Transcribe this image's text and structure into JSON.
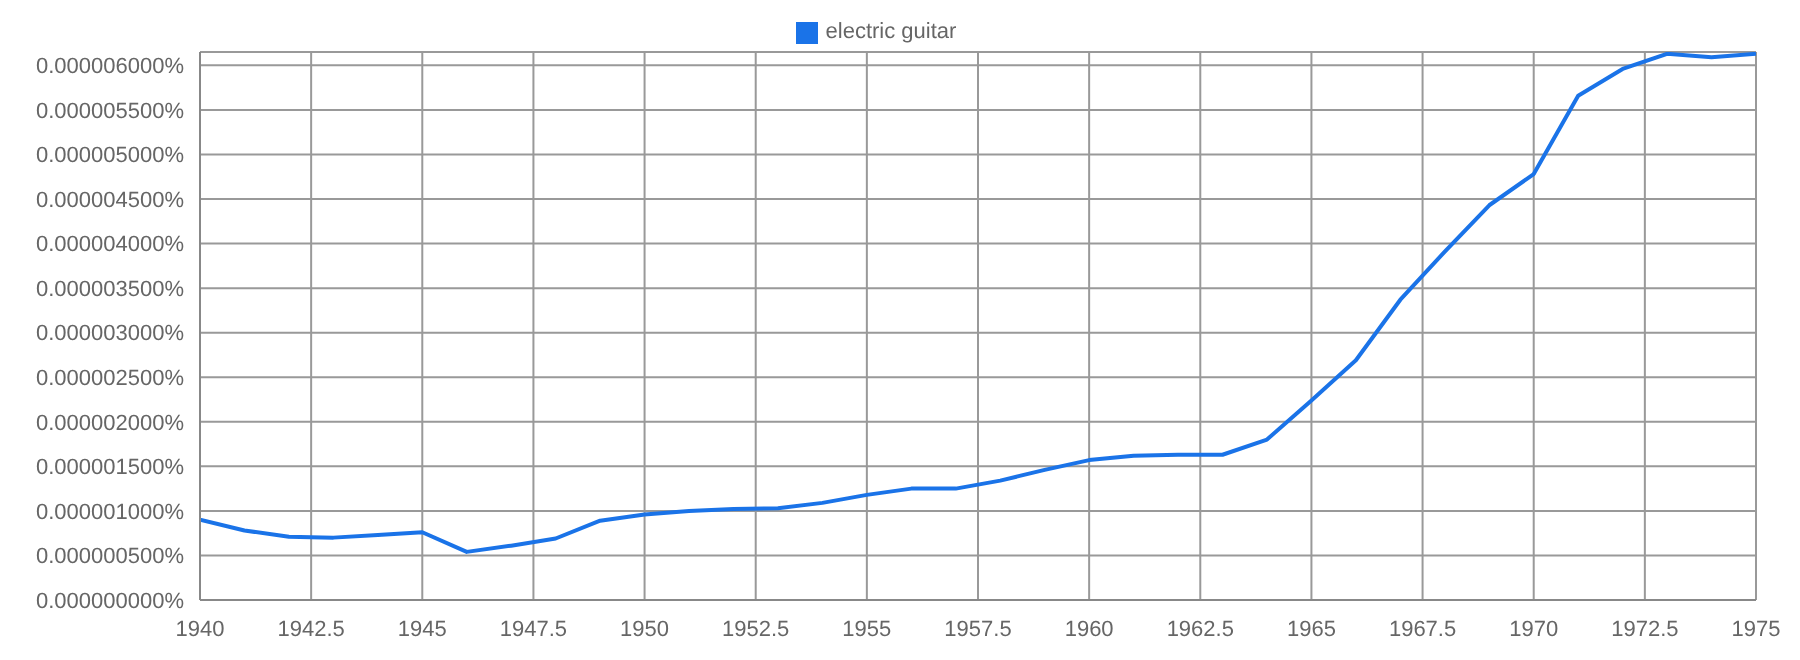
{
  "chart_data": {
    "type": "line",
    "x": [
      1940,
      1941,
      1942,
      1943,
      1944,
      1945,
      1946,
      1947,
      1948,
      1949,
      1950,
      1951,
      1952,
      1953,
      1954,
      1955,
      1956,
      1957,
      1958,
      1959,
      1960,
      1961,
      1962,
      1963,
      1964,
      1965,
      1966,
      1967,
      1968,
      1969,
      1970,
      1971,
      1972,
      1973,
      1974,
      1975
    ],
    "series": [
      {
        "name": "electric guitar",
        "color": "#1a73e8",
        "values": [
          9e-07,
          7.8e-07,
          7.1e-07,
          7e-07,
          7.3e-07,
          7.6e-07,
          5.4e-07,
          6.1e-07,
          6.9e-07,
          8.9e-07,
          9.6e-07,
          1e-06,
          1.02e-06,
          1.03e-06,
          1.09e-06,
          1.18e-06,
          1.25e-06,
          1.25e-06,
          1.34e-06,
          1.46e-06,
          1.57e-06,
          1.62e-06,
          1.63e-06,
          1.63e-06,
          1.8e-06,
          2.24e-06,
          2.69e-06,
          3.37e-06,
          3.91e-06,
          4.43e-06,
          4.78e-06,
          5.66e-06,
          5.96e-06,
          6.13e-06,
          6.09e-06,
          6.13e-06
        ]
      }
    ],
    "xlim": [
      1940,
      1975
    ],
    "xticks": [
      1940,
      1942.5,
      1945,
      1947.5,
      1950,
      1952.5,
      1955,
      1957.5,
      1960,
      1962.5,
      1965,
      1967.5,
      1970,
      1972.5,
      1975
    ],
    "ylim": [
      0,
      6.15e-06
    ],
    "yticks": [
      {
        "value": 0,
        "label": "0.000000000%"
      },
      {
        "value": 5e-07,
        "label": "0.000000500%"
      },
      {
        "value": 1e-06,
        "label": "0.000001000%"
      },
      {
        "value": 1.5e-06,
        "label": "0.000001500%"
      },
      {
        "value": 2e-06,
        "label": "0.000002000%"
      },
      {
        "value": 2.5e-06,
        "label": "0.000002500%"
      },
      {
        "value": 3e-06,
        "label": "0.000003000%"
      },
      {
        "value": 3.5e-06,
        "label": "0.000003500%"
      },
      {
        "value": 4e-06,
        "label": "0.000004000%"
      },
      {
        "value": 4.5e-06,
        "label": "0.000004500%"
      },
      {
        "value": 5e-06,
        "label": "0.000005000%"
      },
      {
        "value": 5.5e-06,
        "label": "0.000005500%"
      },
      {
        "value": 6e-06,
        "label": "0.000006000%"
      }
    ],
    "grid": true,
    "legend": "top",
    "marker": "none",
    "line_style": "solid"
  }
}
